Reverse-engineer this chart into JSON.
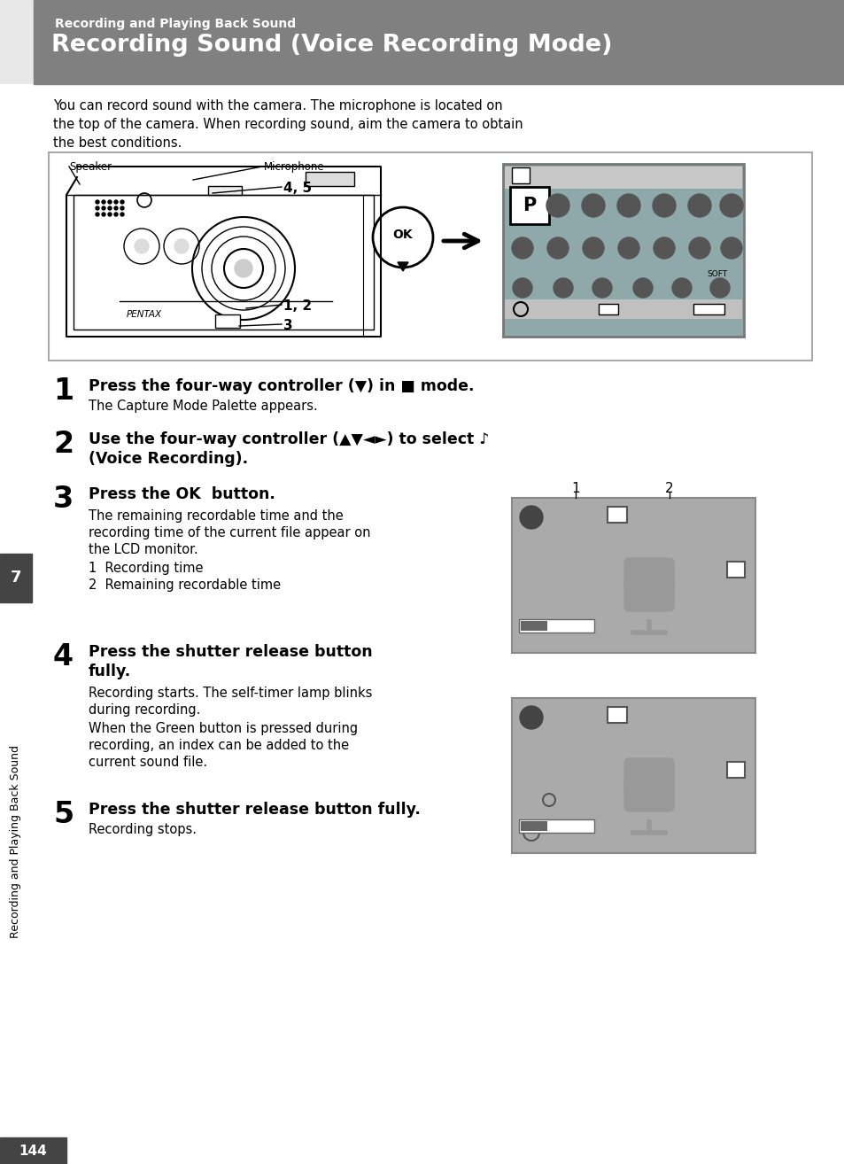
{
  "page_bg": "#ffffff",
  "header_bg": "#808080",
  "header_sub": "Recording and Playing Back Sound",
  "header_main": "Recording Sound (Voice Recording Mode)",
  "intro_text": "You can record sound with the camera. The microphone is located on\nthe top of the camera. When recording sound, aim the camera to obtain\nthe best conditions.",
  "sidebar_text": "Recording and Playing Back Sound",
  "page_num": "144",
  "tab_bg": "#444444",
  "tab_text": "7"
}
